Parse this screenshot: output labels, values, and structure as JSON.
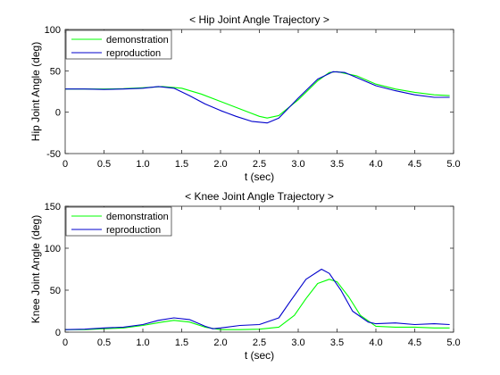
{
  "chart_data": [
    {
      "type": "line",
      "title": "< Hip Joint Angle Trajectory >",
      "xlabel": "t (sec)",
      "ylabel": "Hip Joint Angle (deg)",
      "xlim": [
        0,
        5
      ],
      "ylim": [
        -50,
        100
      ],
      "xticks": [
        0,
        0.5,
        1,
        1.5,
        2,
        2.5,
        3,
        3.5,
        4,
        4.5,
        5
      ],
      "xtick_labels": [
        "0",
        "0.5",
        "1.0",
        "1.5",
        "2.0",
        "2.5",
        "3.0",
        "3.5",
        "4.0",
        "4.5",
        "5.0"
      ],
      "yticks": [
        -50,
        0,
        50,
        100
      ],
      "ytick_labels": [
        "-50",
        "0",
        "50",
        "100"
      ],
      "grid": false,
      "legend_position": "top-left",
      "series": [
        {
          "name": "demonstration",
          "color": "#00ff00",
          "x": [
            0,
            0.25,
            0.5,
            0.75,
            1.0,
            1.25,
            1.5,
            1.75,
            2.0,
            2.25,
            2.5,
            2.6,
            2.75,
            3.0,
            3.25,
            3.4,
            3.5,
            3.75,
            4.0,
            4.25,
            4.5,
            4.75,
            4.95
          ],
          "y": [
            28,
            28,
            28,
            28.5,
            29.5,
            31,
            29,
            22,
            13,
            4,
            -5,
            -7,
            -4,
            15,
            38,
            48,
            49,
            44,
            34,
            28,
            24,
            21,
            20
          ]
        },
        {
          "name": "reproduction",
          "color": "#0000cc",
          "x": [
            0,
            0.25,
            0.5,
            0.75,
            1.0,
            1.2,
            1.4,
            1.6,
            1.8,
            2.0,
            2.2,
            2.4,
            2.6,
            2.75,
            3.0,
            3.25,
            3.45,
            3.6,
            3.75,
            4.0,
            4.25,
            4.5,
            4.75,
            4.95
          ],
          "y": [
            28,
            28,
            27.5,
            28,
            29,
            31,
            29,
            20,
            10,
            2,
            -5,
            -11,
            -13,
            -7,
            17,
            40,
            49,
            48,
            42,
            32,
            26,
            21,
            18,
            18
          ]
        }
      ]
    },
    {
      "type": "line",
      "title": "< Knee Joint Angle Trajectory >",
      "xlabel": "t (sec)",
      "ylabel": "Knee Joint Angle (deg)",
      "xlim": [
        0,
        5
      ],
      "ylim": [
        0,
        150
      ],
      "xticks": [
        0,
        0.5,
        1,
        1.5,
        2,
        2.5,
        3,
        3.5,
        4,
        4.5,
        5
      ],
      "xtick_labels": [
        "0",
        "0.5",
        "1.0",
        "1.5",
        "2.0",
        "2.5",
        "3.0",
        "3.5",
        "4.0",
        "4.5",
        "5.0"
      ],
      "yticks": [
        0,
        50,
        100,
        150
      ],
      "ytick_labels": [
        "0",
        "50",
        "100",
        "150"
      ],
      "grid": false,
      "legend_position": "top-left",
      "series": [
        {
          "name": "demonstration",
          "color": "#00ff00",
          "x": [
            0,
            0.25,
            0.5,
            0.75,
            1.0,
            1.25,
            1.4,
            1.6,
            1.8,
            2.0,
            2.25,
            2.5,
            2.75,
            2.95,
            3.1,
            3.25,
            3.4,
            3.5,
            3.65,
            3.8,
            4.0,
            4.25,
            4.5,
            4.75,
            4.95
          ],
          "y": [
            3,
            3,
            4,
            5,
            8,
            12,
            14,
            12,
            6,
            3,
            3,
            3.5,
            6,
            20,
            40,
            58,
            63,
            60,
            42,
            20,
            7,
            6,
            6,
            5,
            5
          ]
        },
        {
          "name": "reproduction",
          "color": "#0000cc",
          "x": [
            0,
            0.25,
            0.5,
            0.75,
            1.0,
            1.2,
            1.4,
            1.6,
            1.8,
            1.9,
            2.0,
            2.25,
            2.5,
            2.75,
            2.9,
            3.1,
            3.3,
            3.4,
            3.55,
            3.7,
            3.9,
            4.0,
            4.25,
            4.5,
            4.75,
            4.95
          ],
          "y": [
            3,
            3.5,
            5,
            6,
            9,
            14,
            17,
            15,
            7,
            4,
            5,
            8,
            9,
            17,
            37,
            63,
            75,
            70,
            50,
            25,
            12,
            10,
            11,
            9,
            10,
            9
          ]
        }
      ]
    }
  ]
}
